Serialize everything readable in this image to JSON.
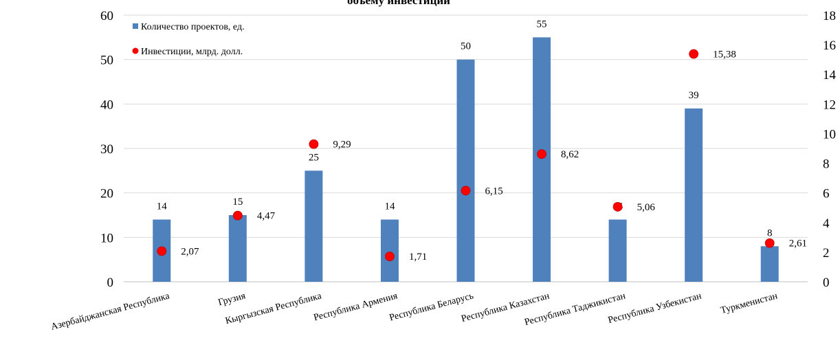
{
  "chart_data": {
    "type": "bar",
    "title": "объему инвестиций",
    "categories": [
      "Азербайджанская Республика",
      "Грузия",
      "Кыргызская Республика",
      "Республика Армения",
      "Республика Беларусь",
      "Республика Казахстан",
      "Республика Таджикистан",
      "Республика Узбекистан",
      "Туркменистан"
    ],
    "series": [
      {
        "name": "Количество проектов, ед.",
        "type": "bar",
        "axis": "left",
        "color": "#4f81bd",
        "values": [
          14,
          15,
          25,
          14,
          50,
          55,
          14,
          39,
          8
        ],
        "labels": [
          "14",
          "15",
          "25",
          "14",
          "50",
          "55",
          "14",
          "39",
          "8"
        ]
      },
      {
        "name": "Инвестиции,  млрд. долл.",
        "type": "scatter",
        "axis": "right",
        "color": "#ff0000",
        "values": [
          2.07,
          4.47,
          9.29,
          1.71,
          6.15,
          8.62,
          5.06,
          15.38,
          2.61
        ],
        "labels": [
          "2,07",
          "4,47",
          "9,29",
          "1,71",
          "6,15",
          "8,62",
          "5,06",
          "15,38",
          "2,61"
        ]
      }
    ],
    "y_left": {
      "ylim": [
        0,
        60
      ],
      "ticks": [
        "0",
        "10",
        "20",
        "30",
        "40",
        "50",
        "60"
      ]
    },
    "y_right": {
      "ylim": [
        0,
        18
      ],
      "ticks": [
        "0",
        "2",
        "4",
        "6",
        "8",
        "10",
        "12",
        "14",
        "16",
        "18"
      ]
    },
    "legend": "top-left",
    "grid": true
  }
}
